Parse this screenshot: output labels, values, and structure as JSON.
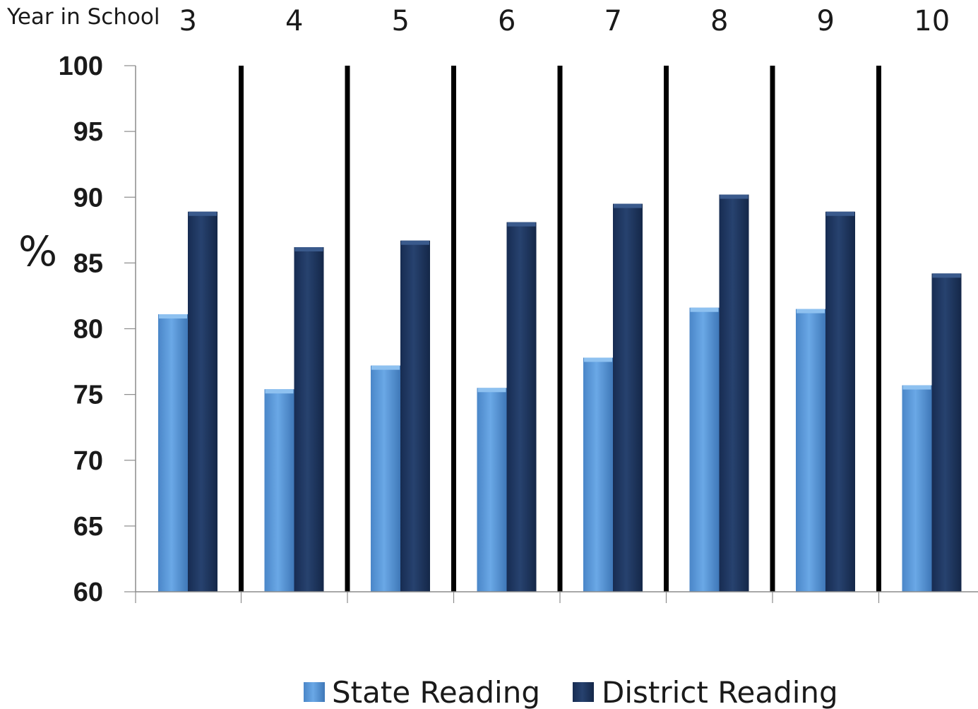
{
  "chart_data": {
    "type": "bar",
    "x_title": "Year in School",
    "ylabel": "%",
    "categories": [
      "3",
      "4",
      "5",
      "6",
      "7",
      "8",
      "9",
      "10"
    ],
    "ylim": [
      60,
      100
    ],
    "yticks": [
      "100",
      "95",
      "90",
      "85",
      "80",
      "75",
      "70",
      "65",
      "60"
    ],
    "series": [
      {
        "name": "State Reading",
        "color": "#5b9bd5",
        "values": [
          81.1,
          75.4,
          77.2,
          75.5,
          77.8,
          81.6,
          81.5,
          75.7
        ]
      },
      {
        "name": "District Reading",
        "color": "#1f3864",
        "values": [
          88.9,
          86.2,
          86.7,
          88.1,
          89.5,
          90.2,
          88.9,
          84.2
        ]
      }
    ],
    "grid": false,
    "legend_position": "bottom",
    "separators": "vertical black lines between year groups"
  }
}
